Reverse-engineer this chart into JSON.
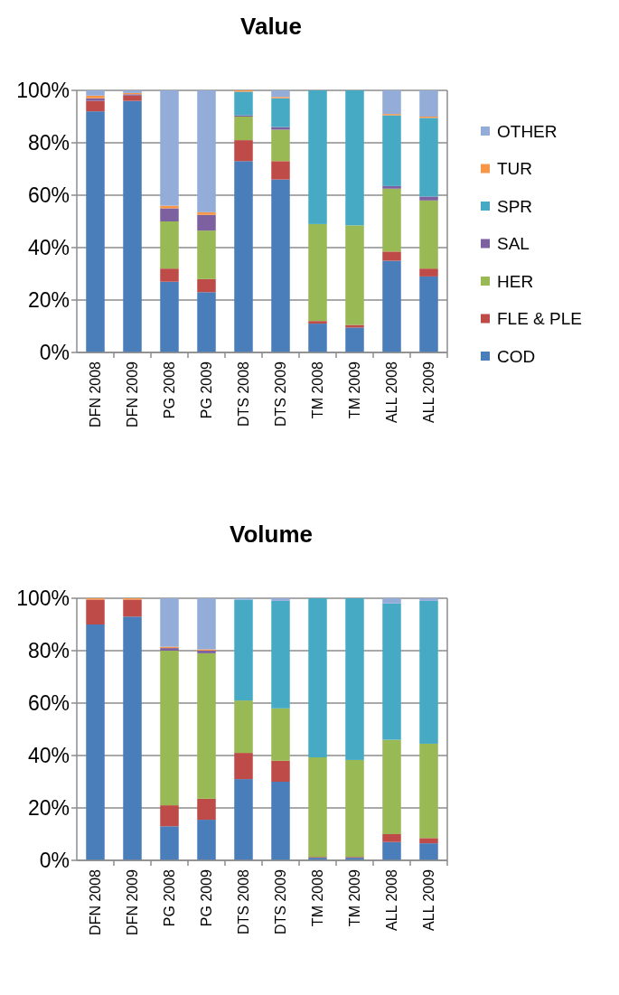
{
  "chart_data": [
    {
      "type": "bar",
      "title": "Value",
      "stacked": true,
      "grid": "y",
      "legend": "right",
      "categories": [
        "DFN 2008",
        "DFN 2009",
        "PG 2008",
        "PG 2009",
        "DTS 2008",
        "DTS 2009",
        "TM 2008",
        "TM 2009",
        "ALL 2008",
        "ALL 2009"
      ],
      "ylim": [
        0,
        100
      ],
      "yticks": [
        {
          "value": 0,
          "label": "0%"
        },
        {
          "value": 20,
          "label": "20%"
        },
        {
          "value": 40,
          "label": "40%"
        },
        {
          "value": 60,
          "label": "60%"
        },
        {
          "value": 80,
          "label": "80%"
        },
        {
          "value": 100,
          "label": "100%"
        }
      ],
      "series": [
        {
          "name": "COD",
          "color": "#4a7ebb",
          "values": [
            92,
            96,
            27,
            23,
            73,
            66,
            11,
            9.5,
            35,
            29
          ]
        },
        {
          "name": "FLE & PLE",
          "color": "#be4b48",
          "values": [
            4,
            2,
            5,
            5,
            8,
            7,
            1,
            1,
            3.5,
            3
          ]
        },
        {
          "name": "HER",
          "color": "#98b954",
          "values": [
            0,
            0,
            18,
            18.5,
            9,
            12,
            37,
            38,
            24,
            26
          ]
        },
        {
          "name": "SAL",
          "color": "#7d60a0",
          "values": [
            1,
            0.5,
            5,
            6,
            0.5,
            1,
            0,
            0,
            1,
            1.5
          ]
        },
        {
          "name": "SPR",
          "color": "#46aac5",
          "values": [
            0,
            0,
            0,
            0,
            9,
            11,
            51,
            51.5,
            27,
            30
          ]
        },
        {
          "name": "TUR",
          "color": "#f79646",
          "values": [
            1,
            0.5,
            1,
            1,
            0.5,
            0.5,
            0,
            0,
            0.5,
            0.5
          ]
        },
        {
          "name": "OTHER",
          "color": "#94acd8",
          "values": [
            2,
            1,
            44,
            46.5,
            0,
            2.5,
            0,
            0,
            9,
            10
          ]
        }
      ]
    },
    {
      "type": "bar",
      "title": "Volume",
      "stacked": true,
      "grid": "y",
      "legend": false,
      "categories": [
        "DFN 2008",
        "DFN 2009",
        "PG 2008",
        "PG 2009",
        "DTS 2008",
        "DTS 2009",
        "TM 2008",
        "TM 2009",
        "ALL 2008",
        "ALL 2009"
      ],
      "ylim": [
        0,
        100
      ],
      "yticks": [
        {
          "value": 0,
          "label": "0%"
        },
        {
          "value": 20,
          "label": "20%"
        },
        {
          "value": 40,
          "label": "40%"
        },
        {
          "value": 60,
          "label": "60%"
        },
        {
          "value": 80,
          "label": "80%"
        },
        {
          "value": 100,
          "label": "100%"
        }
      ],
      "series": [
        {
          "color": "#4a7ebb",
          "values": [
            90,
            93,
            13,
            15.5,
            31,
            30,
            1,
            1,
            7,
            6.5
          ]
        },
        {
          "color": "#be4b48",
          "values": [
            9.5,
            6.5,
            8,
            8,
            10,
            8,
            0.3,
            0.3,
            3,
            2
          ]
        },
        {
          "color": "#98b954",
          "values": [
            0,
            0,
            59,
            55.5,
            20,
            20,
            38,
            37,
            36,
            36
          ]
        },
        {
          "color": "#7d60a0",
          "values": [
            0,
            0,
            1,
            1,
            0,
            0,
            0,
            0,
            0,
            0
          ]
        },
        {
          "color": "#46aac5",
          "values": [
            0,
            0,
            0,
            0,
            38.5,
            41,
            60.7,
            61.7,
            52,
            54.5
          ]
        },
        {
          "color": "#f79646",
          "values": [
            0.5,
            0.5,
            0.5,
            0.5,
            0,
            0,
            0,
            0,
            0,
            0
          ]
        },
        {
          "color": "#94acd8",
          "values": [
            0,
            0,
            18.5,
            19.5,
            0.5,
            1,
            0,
            0,
            2,
            1
          ]
        }
      ]
    }
  ]
}
